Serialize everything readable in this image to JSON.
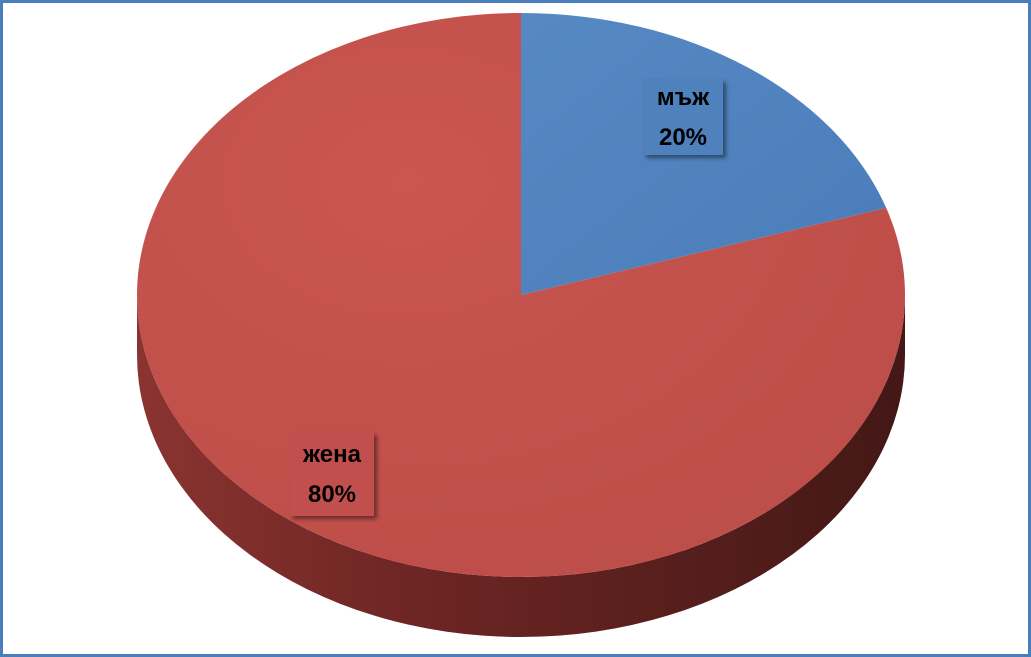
{
  "chart_data": {
    "type": "pie",
    "style": "3d",
    "title": "",
    "categories": [
      "мъж",
      "жена"
    ],
    "values": [
      20,
      80
    ],
    "labels": [
      {
        "category": "мъж",
        "percent": "20%"
      },
      {
        "category": "жена",
        "percent": "80%"
      }
    ],
    "colors": [
      "#4F81BD",
      "#C0504D"
    ],
    "legend": "none"
  },
  "frame": {
    "border_color": "#4A7EBB"
  }
}
